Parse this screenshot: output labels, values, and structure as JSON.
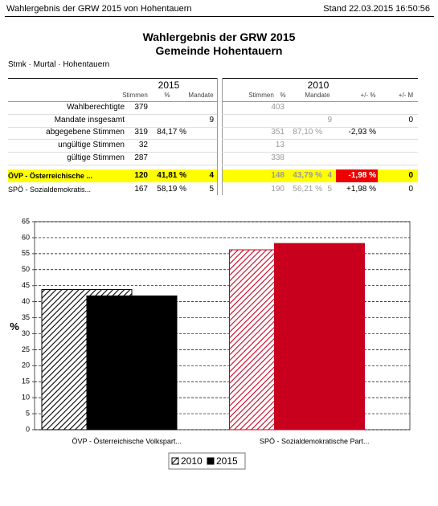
{
  "header": {
    "left": "Wahlergebnis der GRW 2015 von Hohentauern",
    "right": "Stand 22.03.2015 16:50:56"
  },
  "title": [
    "Wahlergebnis der GRW 2015",
    "Gemeinde Hohentauern"
  ],
  "breadcrumb": "Stmk · Murtal · Hohentauern",
  "table": {
    "years": [
      "2015",
      "2010"
    ],
    "columns": {
      "s1": "Stimmen",
      "p1": "%",
      "m1": "Mandate",
      "s2": "Stimmen",
      "p2": "%",
      "m2": "Mandate",
      "dp": "+/- %",
      "dm": "+/- M"
    },
    "rows": [
      {
        "label": "Wahlberechtigte",
        "s1": "379",
        "s2": "403"
      },
      {
        "label": "Mandate insgesamt",
        "m1": "9",
        "m2": "9",
        "dm": "0"
      },
      {
        "label": "abgegebene Stimmen",
        "s1": "319",
        "p1": "84,17 %",
        "s2": "351",
        "p2": "87,10 %",
        "dp": "-2,93 %"
      },
      {
        "label": "ungültige Stimmen",
        "s1": "32",
        "s2": "13"
      },
      {
        "label": "gültige Stimmen",
        "s1": "287",
        "s2": "338"
      }
    ],
    "parties": [
      {
        "label": "ÖVP - Österreichische ...",
        "s1": "120",
        "p1": "41,81 %",
        "m1": "4",
        "s2": "148",
        "p2": "43,79 %",
        "m2": "4",
        "dp": "-1,98 %",
        "dm": "0"
      },
      {
        "label": "SPÖ - Sozialdemokratis...",
        "s1": "167",
        "p1": "58,19 %",
        "m1": "5",
        "s2": "190",
        "p2": "56,21 %",
        "m2": "5",
        "dp": "+1,98 %",
        "dm": "0"
      }
    ]
  },
  "chart_data": {
    "type": "bar",
    "y_label": "%",
    "categories": [
      "ÖVP - Österreichische Volkspart...",
      "SPÖ - Sozialdemokratische Part..."
    ],
    "category_colors": [
      "#000000",
      "#c8001e"
    ],
    "series": [
      {
        "name": "2010",
        "color": "#000000",
        "pattern": "hatch",
        "values": [
          43.79,
          56.21
        ]
      },
      {
        "name": "2015",
        "color": "#000000",
        "values": [
          41.81,
          58.19
        ]
      }
    ],
    "ylim": [
      0,
      65
    ],
    "yticks": [
      0,
      5,
      10,
      15,
      20,
      25,
      30,
      35,
      40,
      45,
      50,
      55,
      60,
      65
    ],
    "grid": true
  }
}
